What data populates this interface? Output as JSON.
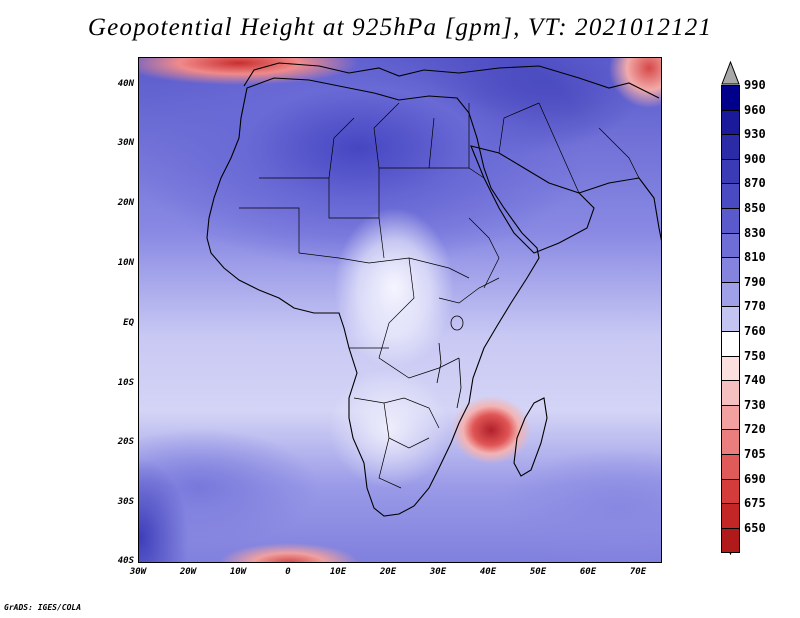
{
  "title": "Geopotential Height at 925hPa [gpm], VT: 2021012121",
  "credit": "GrADS: IGES/COLA",
  "map": {
    "region": "Africa and surroundings",
    "lat_labels": [
      "40N",
      "30N",
      "20N",
      "10N",
      "EQ",
      "10S",
      "20S",
      "30S",
      "40S"
    ],
    "lon_labels": [
      "30W",
      "20W",
      "10W",
      "0",
      "10E",
      "20E",
      "30E",
      "40E",
      "50E",
      "60E",
      "70E"
    ]
  },
  "colorbar": {
    "labels": [
      "990",
      "960",
      "930",
      "900",
      "870",
      "850",
      "830",
      "810",
      "790",
      "770",
      "760",
      "750",
      "740",
      "730",
      "720",
      "705",
      "690",
      "675",
      "650"
    ],
    "colors": [
      "#00008b",
      "#1a1a9a",
      "#2b2ba8",
      "#3b3bb5",
      "#4a4ac2",
      "#5a5acc",
      "#6e6ed6",
      "#8484df",
      "#a0a0e8",
      "#c4c4f2",
      "#ffffff",
      "#fce0e0",
      "#f7c0c0",
      "#f2a0a0",
      "#ea7e7e",
      "#e05a5a",
      "#d43c3c",
      "#c42626",
      "#b01a1a"
    ],
    "arrow_top_color": "#a8a8a8",
    "arrow_bottom_color": "#a01818"
  }
}
